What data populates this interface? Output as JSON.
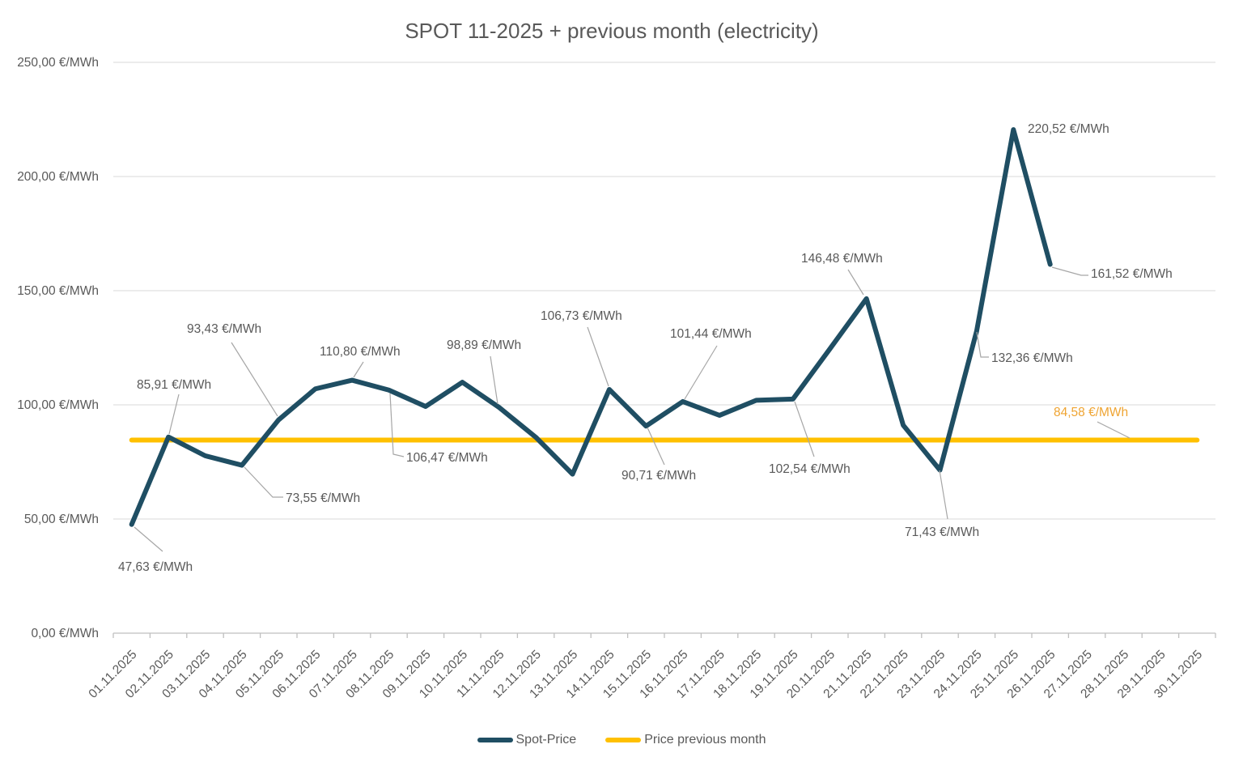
{
  "chart_data": {
    "type": "line",
    "title": "SPOT 11-2025 + previous month (electricity)",
    "x_categories": [
      "01.11.2025",
      "02.11.2025",
      "03.11.2025",
      "04.11.2025",
      "05.11.2025",
      "06.11.2025",
      "07.11.2025",
      "08.11.2025",
      "09.11.2025",
      "10.11.2025",
      "11.11.2025",
      "12.11.2025",
      "13.11.2025",
      "14.11.2025",
      "15.11.2025",
      "16.11.2025",
      "17.11.2025",
      "18.11.2025",
      "19.11.2025",
      "20.11.2025",
      "21.11.2025",
      "22.11.2025",
      "23.11.2025",
      "24.11.2025",
      "25.11.2025",
      "26.11.2025",
      "27.11.2025",
      "28.11.2025",
      "29.11.2025",
      "30.11.2025"
    ],
    "y_axis": {
      "tick_labels": [
        "0,00 €/MWh",
        "50,00 €/MWh",
        "100,00 €/MWh",
        "150,00 €/MWh",
        "200,00 €/MWh",
        "250,00 €/MWh"
      ],
      "tick_values": [
        0,
        50,
        100,
        150,
        200,
        250
      ],
      "ylim": [
        0,
        250
      ],
      "grid": true
    },
    "series": [
      {
        "name": "Spot-Price",
        "color": "#1F4E63",
        "values": [
          47.63,
          85.91,
          77.7,
          73.55,
          93.43,
          107.0,
          110.8,
          106.47,
          99.3,
          109.9,
          98.89,
          85.8,
          69.65,
          106.73,
          90.71,
          101.44,
          95.4,
          102.0,
          102.54,
          124.4,
          146.48,
          91.1,
          71.43,
          132.36,
          220.52,
          161.52,
          null,
          null,
          null,
          null
        ]
      },
      {
        "name": "Price previous month",
        "color": "#FFC000",
        "value": 84.58,
        "span": [
          "01.11.2025",
          "30.11.2025"
        ]
      }
    ],
    "data_labels": [
      {
        "day": 1,
        "text": "47,63 €/MWh"
      },
      {
        "day": 2,
        "text": "85,91 €/MWh"
      },
      {
        "day": 4,
        "text": "73,55 €/MWh"
      },
      {
        "day": 5,
        "text": "93,43 €/MWh"
      },
      {
        "day": 7,
        "text": "110,80 €/MWh"
      },
      {
        "day": 8,
        "text": "106,47 €/MWh"
      },
      {
        "day": 11,
        "text": "98,89 €/MWh"
      },
      {
        "day": 14,
        "text": "106,73 €/MWh"
      },
      {
        "day": 15,
        "text": "90,71 €/MWh"
      },
      {
        "day": 16,
        "text": "101,44 €/MWh"
      },
      {
        "day": 19,
        "text": "102,54 €/MWh"
      },
      {
        "day": 21,
        "text": "146,48 €/MWh"
      },
      {
        "day": 23,
        "text": "71,43 €/MWh"
      },
      {
        "day": 24,
        "text": "132,36 €/MWh"
      },
      {
        "day": 25,
        "text": "220,52 €/MWh"
      },
      {
        "day": 26,
        "text": "161,52 €/MWh"
      },
      {
        "series": "Price previous month",
        "text": "84,58 €/MWh",
        "color": "#EFA432"
      }
    ],
    "legend": {
      "position": "bottom",
      "items": [
        {
          "label": "Spot-Price",
          "color": "#1F4E63"
        },
        {
          "label": "Price previous month",
          "color": "#FFC000"
        }
      ]
    },
    "colors": {
      "title_text": "#595959",
      "axis_text": "#595959",
      "data_label_text": "#595959",
      "gridline": "#D9D9D9",
      "axis_line": "#BFBFBF",
      "leader_line": "#A6A6A6",
      "background": "#FFFFFF"
    }
  }
}
